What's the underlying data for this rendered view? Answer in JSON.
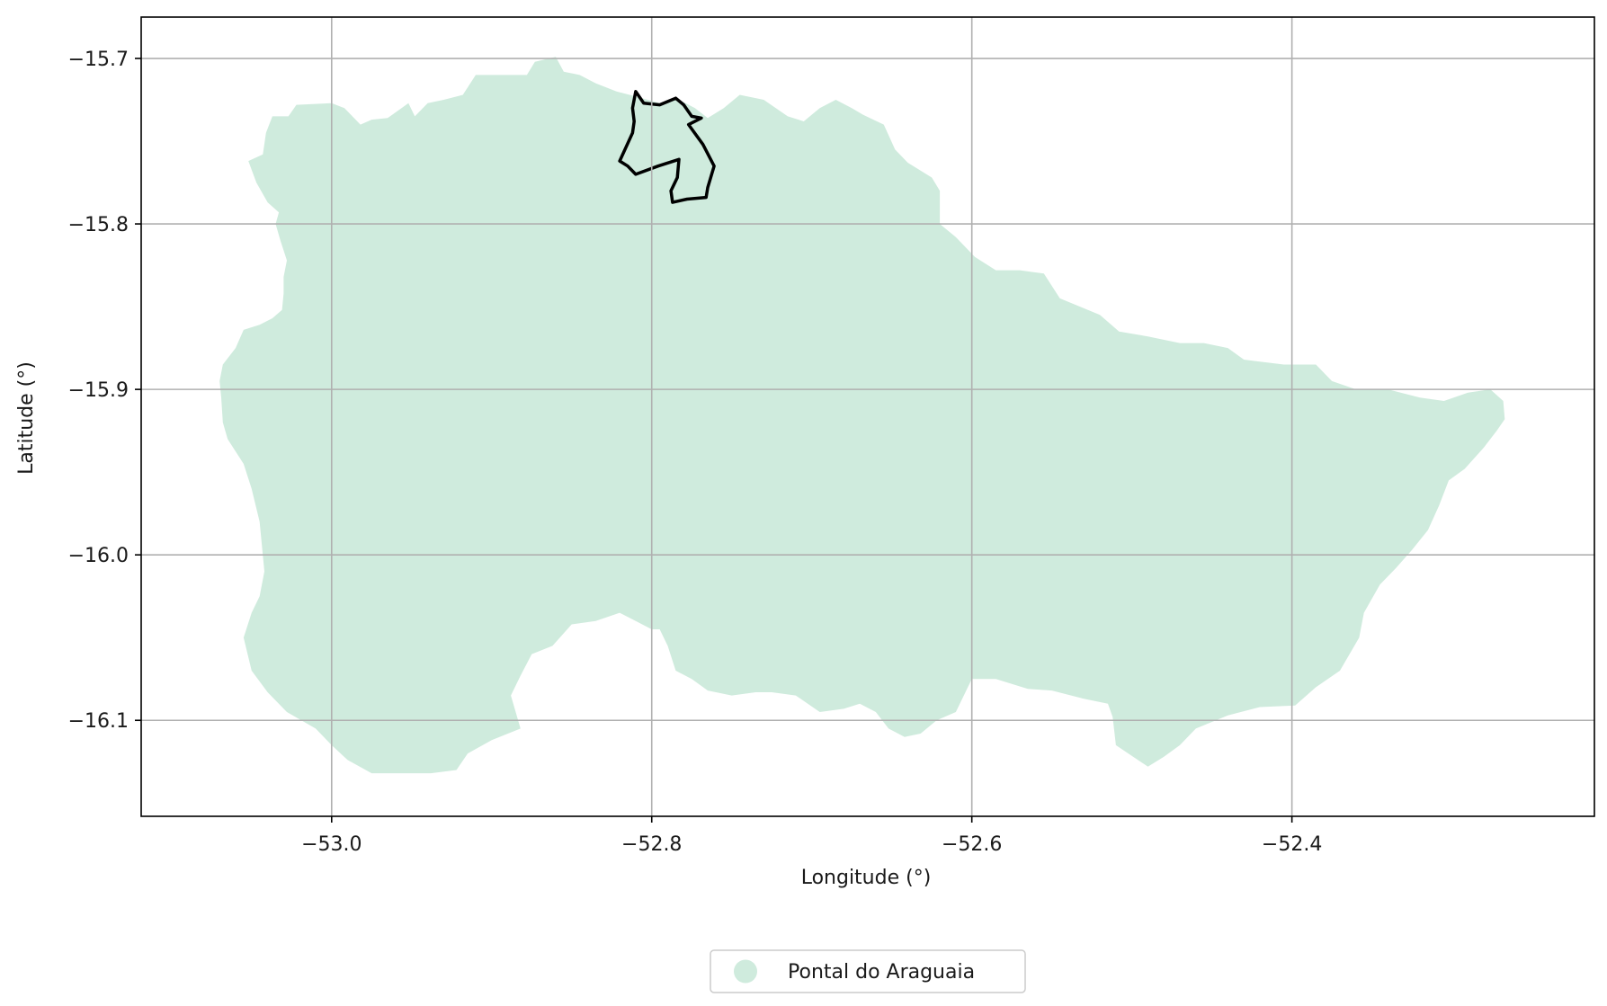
{
  "chart_data": {
    "type": "map",
    "xlabel": "Longitude (°)",
    "ylabel": "Latitude (°)",
    "xlim": [
      -53.119,
      -52.211
    ],
    "ylim": [
      -16.158,
      -15.675
    ],
    "xticks": [
      -53.0,
      -52.8,
      -52.6,
      -52.4
    ],
    "xtick_labels": [
      "−53.0",
      "−52.8",
      "−52.6",
      "−52.4"
    ],
    "yticks": [
      -15.7,
      -15.8,
      -15.9,
      -16.0,
      -16.1
    ],
    "ytick_labels": [
      "−15.7",
      "−15.8",
      "−15.9",
      "−16.0",
      "−16.1"
    ],
    "grid": true,
    "legend": {
      "placement": "bottom-center, below axes",
      "entries": [
        {
          "label": "Pontal do Araguaia",
          "color": "#cfebdd",
          "marker": "circle"
        }
      ]
    },
    "series": [
      {
        "name": "Pontal do Araguaia",
        "kind": "filled-polygon",
        "color": "#cfebdd",
        "lonlat": [
          [
            -53.069,
            -15.905
          ],
          [
            -53.07,
            -15.895
          ],
          [
            -53.068,
            -15.885
          ],
          [
            -53.06,
            -15.875
          ],
          [
            -53.055,
            -15.864
          ],
          [
            -53.045,
            -15.861
          ],
          [
            -53.037,
            -15.857
          ],
          [
            -53.031,
            -15.852
          ],
          [
            -53.03,
            -15.842
          ],
          [
            -53.03,
            -15.832
          ],
          [
            -53.028,
            -15.822
          ],
          [
            -53.032,
            -15.81
          ],
          [
            -53.035,
            -15.8
          ],
          [
            -53.033,
            -15.793
          ],
          [
            -53.04,
            -15.787
          ],
          [
            -53.047,
            -15.775
          ],
          [
            -53.052,
            -15.762
          ],
          [
            -53.043,
            -15.758
          ],
          [
            -53.041,
            -15.745
          ],
          [
            -53.037,
            -15.735
          ],
          [
            -53.027,
            -15.735
          ],
          [
            -53.022,
            -15.728
          ],
          [
            -53.0,
            -15.727
          ],
          [
            -52.992,
            -15.73
          ],
          [
            -52.982,
            -15.74
          ],
          [
            -52.975,
            -15.737
          ],
          [
            -52.965,
            -15.736
          ],
          [
            -52.952,
            -15.727
          ],
          [
            -52.948,
            -15.735
          ],
          [
            -52.94,
            -15.727
          ],
          [
            -52.93,
            -15.725
          ],
          [
            -52.918,
            -15.722
          ],
          [
            -52.91,
            -15.71
          ],
          [
            -52.9,
            -15.71
          ],
          [
            -52.89,
            -15.71
          ],
          [
            -52.878,
            -15.71
          ],
          [
            -52.873,
            -15.702
          ],
          [
            -52.86,
            -15.699
          ],
          [
            -52.855,
            -15.708
          ],
          [
            -52.845,
            -15.71
          ],
          [
            -52.835,
            -15.715
          ],
          [
            -52.822,
            -15.72
          ],
          [
            -52.81,
            -15.723
          ],
          [
            -52.795,
            -15.727
          ],
          [
            -52.785,
            -15.724
          ],
          [
            -52.773,
            -15.73
          ],
          [
            -52.765,
            -15.736
          ],
          [
            -52.755,
            -15.73
          ],
          [
            -52.745,
            -15.722
          ],
          [
            -52.73,
            -15.725
          ],
          [
            -52.715,
            -15.735
          ],
          [
            -52.705,
            -15.738
          ],
          [
            -52.695,
            -15.73
          ],
          [
            -52.685,
            -15.725
          ],
          [
            -52.675,
            -15.73
          ],
          [
            -52.668,
            -15.734
          ],
          [
            -52.655,
            -15.74
          ],
          [
            -52.648,
            -15.755
          ],
          [
            -52.64,
            -15.763
          ],
          [
            -52.625,
            -15.772
          ],
          [
            -52.62,
            -15.78
          ],
          [
            -52.62,
            -15.795
          ],
          [
            -52.62,
            -15.8
          ],
          [
            -52.61,
            -15.808
          ],
          [
            -52.598,
            -15.82
          ],
          [
            -52.585,
            -15.828
          ],
          [
            -52.57,
            -15.828
          ],
          [
            -52.555,
            -15.83
          ],
          [
            -52.545,
            -15.845
          ],
          [
            -52.52,
            -15.855
          ],
          [
            -52.508,
            -15.865
          ],
          [
            -52.49,
            -15.868
          ],
          [
            -52.47,
            -15.872
          ],
          [
            -52.455,
            -15.872
          ],
          [
            -52.44,
            -15.875
          ],
          [
            -52.43,
            -15.882
          ],
          [
            -52.405,
            -15.885
          ],
          [
            -52.385,
            -15.885
          ],
          [
            -52.375,
            -15.895
          ],
          [
            -52.36,
            -15.9
          ],
          [
            -52.34,
            -15.9
          ],
          [
            -52.32,
            -15.905
          ],
          [
            -52.305,
            -15.907
          ],
          [
            -52.29,
            -15.902
          ],
          [
            -52.276,
            -15.9
          ],
          [
            -52.268,
            -15.907
          ],
          [
            -52.267,
            -15.918
          ],
          [
            -52.272,
            -15.925
          ],
          [
            -52.28,
            -15.935
          ],
          [
            -52.292,
            -15.948
          ],
          [
            -52.302,
            -15.955
          ],
          [
            -52.308,
            -15.97
          ],
          [
            -52.315,
            -15.985
          ],
          [
            -52.325,
            -15.997
          ],
          [
            -52.335,
            -16.008
          ],
          [
            -52.345,
            -16.018
          ],
          [
            -52.355,
            -16.035
          ],
          [
            -52.358,
            -16.05
          ],
          [
            -52.37,
            -16.07
          ],
          [
            -52.385,
            -16.08
          ],
          [
            -52.398,
            -16.091
          ],
          [
            -52.42,
            -16.092
          ],
          [
            -52.44,
            -16.097
          ],
          [
            -52.46,
            -16.105
          ],
          [
            -52.47,
            -16.115
          ],
          [
            -52.48,
            -16.122
          ],
          [
            -52.49,
            -16.128
          ],
          [
            -52.51,
            -16.115
          ],
          [
            -52.512,
            -16.098
          ],
          [
            -52.515,
            -16.09
          ],
          [
            -52.53,
            -16.087
          ],
          [
            -52.55,
            -16.082
          ],
          [
            -52.565,
            -16.081
          ],
          [
            -52.585,
            -16.075
          ],
          [
            -52.6,
            -16.075
          ],
          [
            -52.61,
            -16.095
          ],
          [
            -52.622,
            -16.1
          ],
          [
            -52.632,
            -16.108
          ],
          [
            -52.642,
            -16.11
          ],
          [
            -52.652,
            -16.105
          ],
          [
            -52.66,
            -16.095
          ],
          [
            -52.67,
            -16.09
          ],
          [
            -52.68,
            -16.093
          ],
          [
            -52.695,
            -16.095
          ],
          [
            -52.71,
            -16.085
          ],
          [
            -52.725,
            -16.083
          ],
          [
            -52.735,
            -16.083
          ],
          [
            -52.75,
            -16.085
          ],
          [
            -52.765,
            -16.082
          ],
          [
            -52.775,
            -16.075
          ],
          [
            -52.785,
            -16.07
          ],
          [
            -52.79,
            -16.055
          ],
          [
            -52.795,
            -16.045
          ],
          [
            -52.8,
            -16.045
          ],
          [
            -52.81,
            -16.04
          ],
          [
            -52.82,
            -16.035
          ],
          [
            -52.835,
            -16.04
          ],
          [
            -52.85,
            -16.042
          ],
          [
            -52.862,
            -16.055
          ],
          [
            -52.875,
            -16.06
          ],
          [
            -52.882,
            -16.073
          ],
          [
            -52.888,
            -16.085
          ],
          [
            -52.882,
            -16.105
          ],
          [
            -52.9,
            -16.112
          ],
          [
            -52.915,
            -16.12
          ],
          [
            -52.922,
            -16.13
          ],
          [
            -52.938,
            -16.132
          ],
          [
            -52.955,
            -16.132
          ],
          [
            -52.975,
            -16.132
          ],
          [
            -52.99,
            -16.124
          ],
          [
            -53.0,
            -16.115
          ],
          [
            -53.01,
            -16.105
          ],
          [
            -53.028,
            -16.095
          ],
          [
            -53.04,
            -16.083
          ],
          [
            -53.05,
            -16.07
          ],
          [
            -53.055,
            -16.05
          ],
          [
            -53.05,
            -16.035
          ],
          [
            -53.045,
            -16.025
          ],
          [
            -53.042,
            -16.01
          ],
          [
            -53.045,
            -15.98
          ],
          [
            -53.05,
            -15.96
          ],
          [
            -53.055,
            -15.945
          ],
          [
            -53.065,
            -15.93
          ],
          [
            -53.068,
            -15.92
          ]
        ]
      },
      {
        "name": "",
        "kind": "outline",
        "color": "#000000",
        "lonlat": [
          [
            -52.81,
            -15.72
          ],
          [
            -52.805,
            -15.727
          ],
          [
            -52.795,
            -15.728
          ],
          [
            -52.785,
            -15.724
          ],
          [
            -52.78,
            -15.728
          ],
          [
            -52.775,
            -15.735
          ],
          [
            -52.769,
            -15.736
          ],
          [
            -52.777,
            -15.74
          ],
          [
            -52.768,
            -15.752
          ],
          [
            -52.761,
            -15.765
          ],
          [
            -52.765,
            -15.778
          ],
          [
            -52.766,
            -15.784
          ],
          [
            -52.778,
            -15.785
          ],
          [
            -52.787,
            -15.787
          ],
          [
            -52.788,
            -15.78
          ],
          [
            -52.784,
            -15.772
          ],
          [
            -52.783,
            -15.761
          ],
          [
            -52.796,
            -15.765
          ],
          [
            -52.81,
            -15.77
          ],
          [
            -52.815,
            -15.765
          ],
          [
            -52.82,
            -15.762
          ],
          [
            -52.812,
            -15.745
          ],
          [
            -52.811,
            -15.738
          ],
          [
            -52.812,
            -15.73
          ]
        ]
      }
    ]
  }
}
